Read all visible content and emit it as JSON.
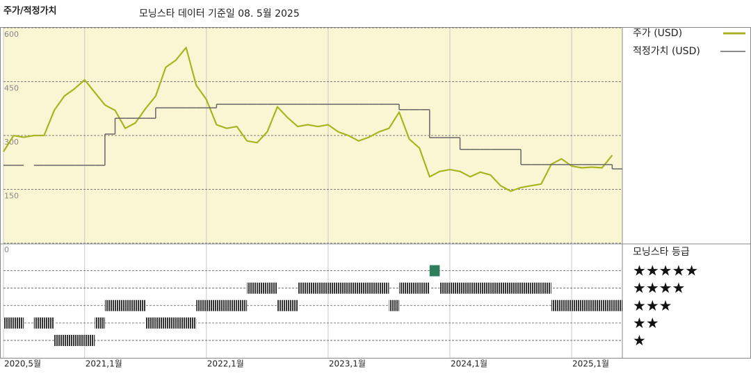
{
  "chart_data": [
    {
      "type": "line",
      "title": "주가/적정가치",
      "subtitle": "모닝스타 데이터 기준일 08. 5월 2025",
      "x": [
        "2020-05",
        "2020-06",
        "2020-07",
        "2020-08",
        "2020-09",
        "2020-10",
        "2020-11",
        "2020-12",
        "2021-01",
        "2021-02",
        "2021-03",
        "2021-04",
        "2021-05",
        "2021-06",
        "2021-07",
        "2021-08",
        "2021-09",
        "2021-10",
        "2021-11",
        "2021-12",
        "2022-01",
        "2022-02",
        "2022-03",
        "2022-04",
        "2022-05",
        "2022-06",
        "2022-07",
        "2022-08",
        "2022-09",
        "2022-10",
        "2022-11",
        "2022-12",
        "2023-01",
        "2023-02",
        "2023-03",
        "2023-04",
        "2023-05",
        "2023-06",
        "2023-07",
        "2023-08",
        "2023-09",
        "2023-10",
        "2023-11",
        "2023-12",
        "2024-01",
        "2024-02",
        "2024-03",
        "2024-04",
        "2024-05",
        "2024-06",
        "2024-07",
        "2024-08",
        "2024-09",
        "2024-10",
        "2024-11",
        "2024-12",
        "2025-01",
        "2025-02",
        "2025-03",
        "2025-04",
        "2025-05"
      ],
      "xlim": [
        "2020-05",
        "2025-06"
      ],
      "ylim": [
        0,
        600
      ],
      "yticks": [
        0,
        150,
        300,
        450,
        600
      ],
      "grid": true,
      "background": "#faf6d4",
      "series": [
        {
          "name": "주가 (USD)",
          "color": "#a9b420",
          "style": "line",
          "values": [
            255,
            300,
            295,
            300,
            300,
            370,
            410,
            430,
            455,
            420,
            385,
            370,
            320,
            335,
            375,
            410,
            490,
            510,
            545,
            440,
            400,
            330,
            320,
            325,
            285,
            280,
            310,
            380,
            350,
            325,
            330,
            325,
            330,
            310,
            300,
            285,
            295,
            310,
            320,
            365,
            290,
            265,
            185,
            200,
            205,
            200,
            185,
            198,
            190,
            160,
            145,
            155,
            160,
            165,
            220,
            235,
            215,
            210,
            212,
            210,
            245
          ]
        },
        {
          "name": "적정가치 (USD)",
          "color": "#666666",
          "style": "step",
          "values": [
            217,
            217,
            null,
            217,
            217,
            217,
            217,
            217,
            217,
            217,
            304,
            348,
            348,
            348,
            348,
            377,
            377,
            377,
            377,
            377,
            377,
            387,
            387,
            387,
            387,
            387,
            387,
            387,
            387,
            387,
            387,
            387,
            387,
            387,
            387,
            387,
            387,
            387,
            387,
            372,
            372,
            372,
            294,
            294,
            294,
            261,
            261,
            261,
            261,
            261,
            261,
            219,
            219,
            219,
            219,
            219,
            219,
            219,
            219,
            219,
            207
          ]
        }
      ]
    },
    {
      "type": "rating",
      "title": "모닝스타 등급",
      "x": [
        "2020-05",
        "2020-06",
        "2020-07",
        "2020-08",
        "2020-09",
        "2020-10",
        "2020-11",
        "2020-12",
        "2021-01",
        "2021-02",
        "2021-03",
        "2021-04",
        "2021-05",
        "2021-06",
        "2021-07",
        "2021-08",
        "2021-09",
        "2021-10",
        "2021-11",
        "2021-12",
        "2022-01",
        "2022-02",
        "2022-03",
        "2022-04",
        "2022-05",
        "2022-06",
        "2022-07",
        "2022-08",
        "2022-09",
        "2022-10",
        "2022-11",
        "2022-12",
        "2023-01",
        "2023-02",
        "2023-03",
        "2023-04",
        "2023-05",
        "2023-06",
        "2023-07",
        "2023-08",
        "2023-09",
        "2023-10",
        "2023-11",
        "2023-12",
        "2024-01",
        "2024-02",
        "2024-03",
        "2024-04",
        "2024-05",
        "2024-06",
        "2024-07",
        "2024-08",
        "2024-09",
        "2024-10",
        "2024-11",
        "2024-12",
        "2025-01",
        "2025-02",
        "2025-03",
        "2025-04",
        "2025-05"
      ],
      "xlim": [
        "2020-05",
        "2025-06"
      ],
      "xticks": [
        {
          "value": "2020-05",
          "label": "2020,5월"
        },
        {
          "value": "2021-01",
          "label": "2021,1월"
        },
        {
          "value": "2022-01",
          "label": "2022,1월"
        },
        {
          "value": "2023-01",
          "label": "2023,1월"
        },
        {
          "value": "2024-01",
          "label": "2024,1월"
        },
        {
          "value": "2025-01",
          "label": "2025,1월"
        }
      ],
      "ylim": [
        0,
        6.5
      ],
      "yticks": [
        {
          "value": 5,
          "label": "★★★★★"
        },
        {
          "value": 4,
          "label": "★★★★"
        },
        {
          "value": 3,
          "label": "★★★"
        },
        {
          "value": 2,
          "label": "★★"
        },
        {
          "value": 1,
          "label": "★"
        }
      ],
      "color": "#333333",
      "highlight_color": "#2e7d5b",
      "values": [
        2,
        2,
        null,
        2,
        2,
        1,
        1,
        1,
        1,
        2,
        3,
        3,
        3,
        3,
        2,
        2,
        2,
        2,
        2,
        3,
        3,
        3,
        3,
        3,
        4,
        4,
        4,
        3,
        3,
        4,
        4,
        4,
        4,
        4,
        4,
        4,
        4,
        4,
        3,
        4,
        4,
        4,
        5,
        4,
        4,
        4,
        4,
        4,
        4,
        4,
        4,
        4,
        4,
        4,
        3,
        3,
        3,
        3,
        3,
        3,
        3
      ]
    }
  ]
}
